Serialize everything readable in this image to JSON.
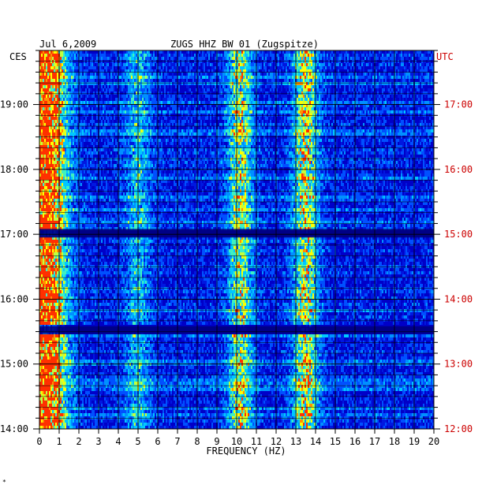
{
  "header": {
    "date": "Jul 6,2009",
    "station": "ZUGS HHZ BW 01 (Zugspitze)"
  },
  "left_zone_label": "CES",
  "right_zone_label": "UTC",
  "corner_mark": "*",
  "colors": {
    "grid": "#000000",
    "utc_text": "#cc0000",
    "background_low": "#0000c8",
    "mid": "#00c8ff",
    "high": "#ffff00",
    "peak": "#ff3000"
  },
  "chart_data": {
    "type": "heatmap",
    "title": "ZUGS HHZ BW 01 (Zugspitze)",
    "xlabel": "FREQUENCY (HZ)",
    "ylabel": "",
    "xlim": [
      0,
      20
    ],
    "x_ticks": [
      "0",
      "1",
      "2",
      "3",
      "4",
      "5",
      "6",
      "7",
      "8",
      "9",
      "10",
      "11",
      "12",
      "13",
      "14",
      "15",
      "16",
      "17",
      "18",
      "19",
      "20"
    ],
    "y_left_ticks": [
      "14:00",
      "15:00",
      "16:00",
      "17:00",
      "18:00",
      "19:00"
    ],
    "y_right_ticks": [
      "12:00",
      "13:00",
      "14:00",
      "15:00",
      "16:00",
      "17:00"
    ],
    "time_range_local": [
      "14:00",
      "19:50"
    ],
    "energy_bands_hz": [
      {
        "center": 0.5,
        "intensity": 0.85
      },
      {
        "center": 5.0,
        "intensity": 0.35
      },
      {
        "center": 10.2,
        "intensity": 0.6
      },
      {
        "center": 13.5,
        "intensity": 0.65
      }
    ],
    "quiet_intervals_local": [
      [
        "15:28",
        "15:35"
      ],
      [
        "16:57",
        "17:05"
      ]
    ]
  }
}
